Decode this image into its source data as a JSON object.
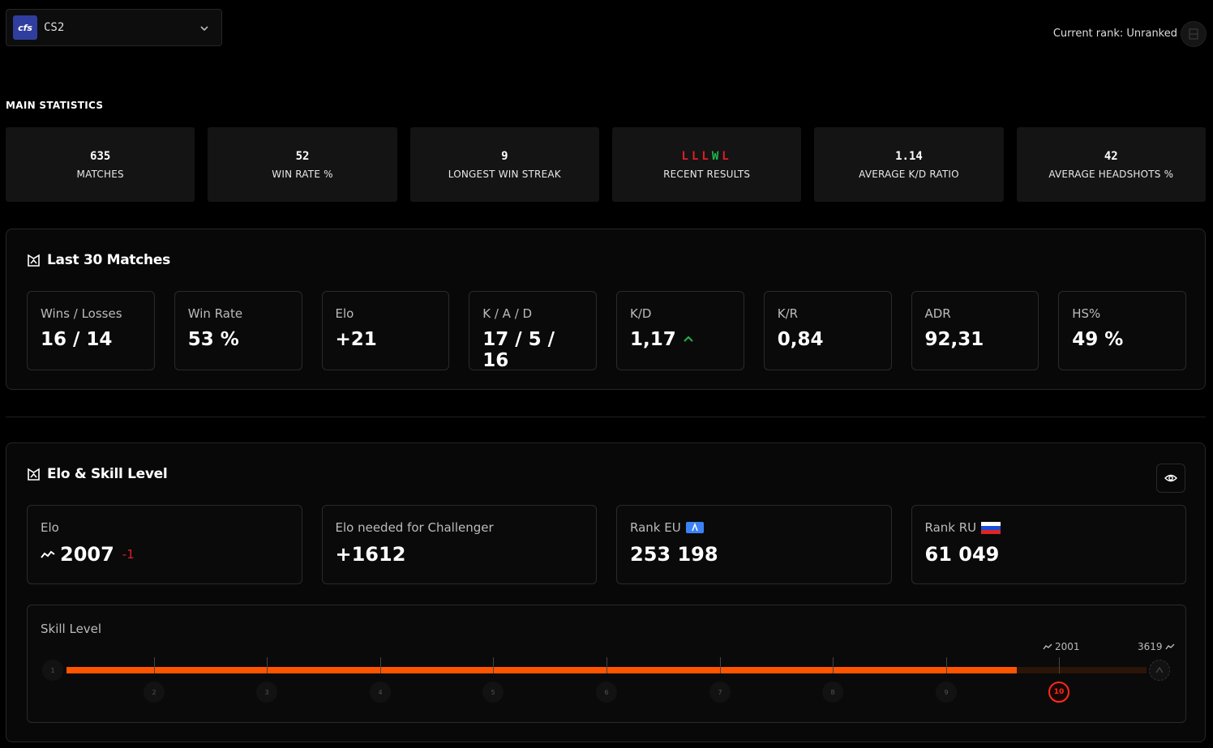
{
  "game": {
    "logo_text": "cfs",
    "name": "CS2"
  },
  "rank": {
    "label": "Current rank: Unranked"
  },
  "main_statistics": {
    "title": "MAIN STATISTICS",
    "cards": [
      {
        "value": "635",
        "label": "MATCHES"
      },
      {
        "value": "52",
        "label": "WIN RATE %"
      },
      {
        "value": "9",
        "label": "LONGEST WIN STREAK"
      },
      {
        "value": "L L L W L",
        "label": "RECENT RESULTS"
      },
      {
        "value": "1.14",
        "label": "AVERAGE K/D RATIO"
      },
      {
        "value": "42",
        "label": "AVERAGE HEADSHOTS %"
      }
    ],
    "recent_results": [
      "L",
      "L",
      "L",
      "W",
      "L"
    ]
  },
  "last30": {
    "title": "Last 30 Matches",
    "stats": [
      {
        "label": "Wins / Losses",
        "value": "16 / 14"
      },
      {
        "label": "Win Rate",
        "value": "53 %"
      },
      {
        "label": "Elo",
        "value": "+21"
      },
      {
        "label": "K / A / D",
        "value": "17 / 5 / 16"
      },
      {
        "label": "K/D",
        "value": "1,17"
      },
      {
        "label": "K/R",
        "value": "0,84"
      },
      {
        "label": "ADR",
        "value": "92,31"
      },
      {
        "label": "HS%",
        "value": "49 %"
      }
    ]
  },
  "elo_skill": {
    "title": "Elo & Skill Level",
    "cards": [
      {
        "label": "Elo",
        "value": "2007",
        "delta": "-1"
      },
      {
        "label": "Elo needed for Challenger",
        "value": "+1612"
      },
      {
        "label": "Rank EU",
        "value": "253 198"
      },
      {
        "label": "Rank RU",
        "value": "61 049"
      }
    ],
    "skill_label": "Skill Level",
    "current_marker": "2001",
    "max_marker": "3619",
    "levels": [
      "1",
      "2",
      "3",
      "4",
      "5",
      "6",
      "7",
      "8",
      "9",
      "10"
    ],
    "current_level": 10,
    "progress_fraction": 0.88
  },
  "colors": {
    "accent": "#ff5500",
    "loss": "#e11d27",
    "win": "#1fb84c",
    "up": "#1fb84c"
  }
}
